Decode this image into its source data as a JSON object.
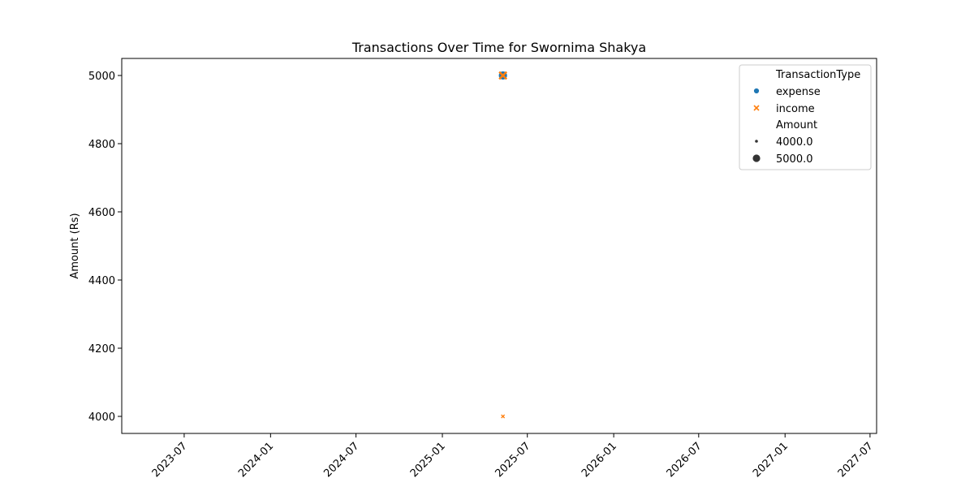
{
  "chart_data": {
    "type": "scatter",
    "title": "Transactions Over Time for Swornima Shakya",
    "xlabel": "",
    "ylabel": "Amount (Rs)",
    "xlim": [
      "2023-02-18",
      "2027-07-15"
    ],
    "ylim": [
      3950,
      5050
    ],
    "x_tick_labels": [
      "2023-07",
      "2024-01",
      "2024-07",
      "2025-01",
      "2025-07",
      "2026-01",
      "2026-07",
      "2027-01",
      "2027-07"
    ],
    "y_tick_labels": [
      "4000",
      "4200",
      "4400",
      "4600",
      "4800",
      "5000"
    ],
    "grid": false,
    "legend_placement": "top-right",
    "hue_title": "TransactionType",
    "size_title": "Amount",
    "series": [
      {
        "name": "expense",
        "marker": "circle",
        "color": "#1f77b4",
        "points": [
          {
            "x": "2025-05-10",
            "y": 5000
          }
        ]
      },
      {
        "name": "income",
        "marker": "x",
        "color": "#ff7f0e",
        "points": [
          {
            "x": "2025-05-10",
            "y": 5000
          },
          {
            "x": "2025-05-10",
            "y": 4000
          }
        ]
      }
    ],
    "size_legend": [
      "4000.0",
      "5000.0"
    ]
  }
}
